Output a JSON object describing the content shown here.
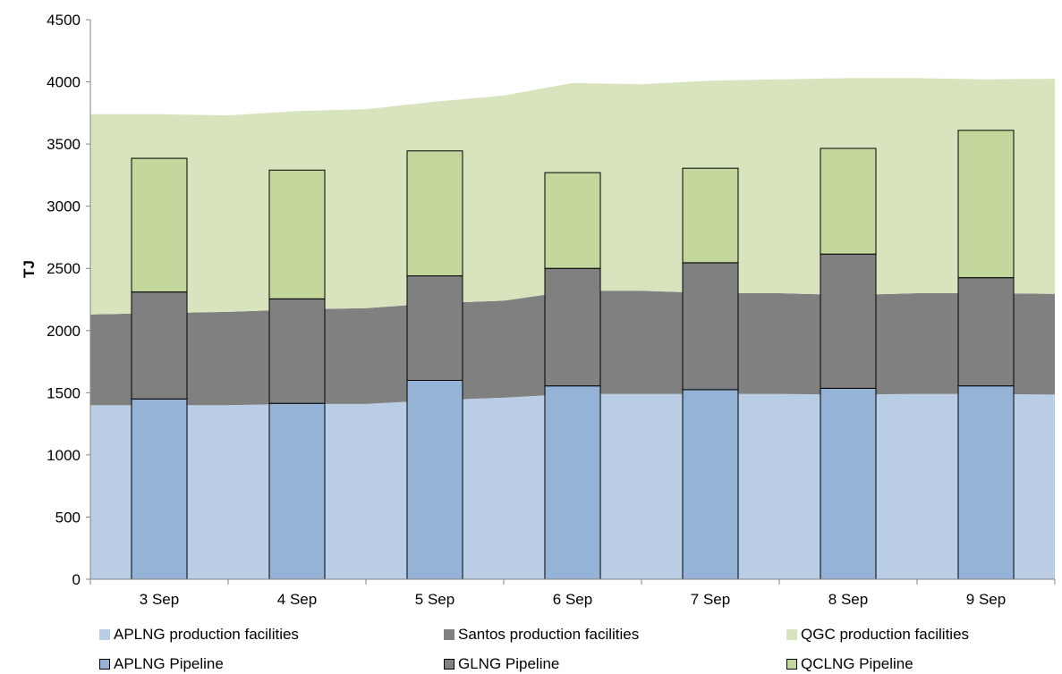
{
  "chart_data": {
    "type": "bar",
    "ylabel": "TJ",
    "ylim": [
      0,
      4500
    ],
    "yticks": [
      0,
      500,
      1000,
      1500,
      2000,
      2500,
      3000,
      3500,
      4000,
      4500
    ],
    "grid": false,
    "legend_position": "bottom",
    "categories": [
      "3 Sep",
      "4 Sep",
      "5 Sep",
      "6 Sep",
      "7 Sep",
      "8 Sep",
      "9 Sep"
    ],
    "area_x": [
      0,
      0.5,
      1,
      1.5,
      2,
      2.5,
      3,
      3.5,
      4,
      4.5,
      5,
      5.5,
      6,
      6.5,
      7
    ],
    "area_series": [
      {
        "name": "APLNG production facilities",
        "color": "#b9cde5",
        "values": [
          1400,
          1400,
          1400,
          1410,
          1410,
          1440,
          1460,
          1490,
          1490,
          1490,
          1490,
          1485,
          1490,
          1490,
          1485
        ]
      },
      {
        "name": "Santos production facilities",
        "color": "#808080",
        "values": [
          730,
          740,
          750,
          760,
          770,
          780,
          780,
          830,
          830,
          810,
          810,
          800,
          810,
          810,
          810
        ]
      },
      {
        "name": "QGC production facilities",
        "color": "#d7e4bd",
        "values": [
          1610,
          1600,
          1580,
          1595,
          1600,
          1620,
          1650,
          1670,
          1660,
          1710,
          1720,
          1745,
          1730,
          1720,
          1730
        ]
      }
    ],
    "bar_series": [
      {
        "name": "APLNG Pipeline",
        "color": "#95b3d7",
        "values": [
          1450,
          1415,
          1600,
          1555,
          1525,
          1535,
          1555
        ]
      },
      {
        "name": "GLNG Pipeline",
        "color": "#808080",
        "values": [
          860,
          840,
          840,
          945,
          1020,
          1080,
          870
        ]
      },
      {
        "name": "QCLNG Pipeline",
        "color": "#c3d69b",
        "values": [
          1075,
          1035,
          1005,
          770,
          760,
          850,
          1185
        ]
      }
    ]
  }
}
